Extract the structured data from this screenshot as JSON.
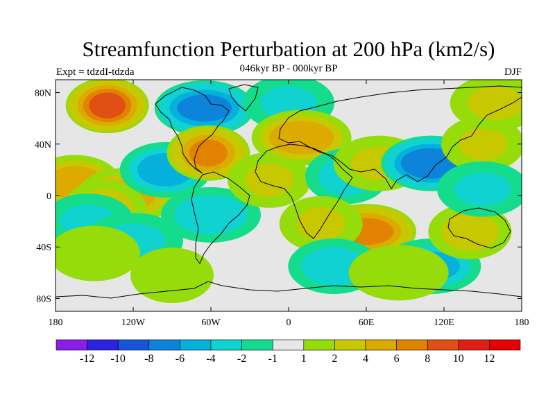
{
  "chart_data": {
    "type": "heatmap",
    "title": "Streamfunction Perturbation at 200 hPa (km2/s)",
    "subtitle_left": "Expt = tdzdI-tdzda",
    "subtitle_center": "046kyr BP - 000kyr BP",
    "subtitle_right": "DJF",
    "x_ticks": [
      "180",
      "120W",
      "60W",
      "0",
      "60E",
      "120E",
      "180"
    ],
    "y_ticks": [
      "80N",
      "40N",
      "0",
      "40S",
      "80S"
    ],
    "xlim": [
      -180,
      180
    ],
    "ylim": [
      -90,
      90
    ],
    "colorbar": {
      "labels": [
        "-12",
        "-10",
        "-8",
        "-6",
        "-4",
        "-2",
        "-1",
        "1",
        "2",
        "4",
        "6",
        "8",
        "10",
        "12"
      ],
      "colors": [
        "#8c1ce6",
        "#2b23e0",
        "#1656d6",
        "#0b84da",
        "#06b0dc",
        "#10d2d0",
        "#14dc8c",
        "#e6e6e6",
        "#96dc0a",
        "#c8c800",
        "#dcaa00",
        "#e18200",
        "#e05014",
        "#e01e14",
        "#e60000"
      ]
    },
    "field_blobs": [
      {
        "lon": -140,
        "lat": 70,
        "value": 9
      },
      {
        "lon": -165,
        "lat": 10,
        "value": 6
      },
      {
        "lon": -125,
        "lat": 0,
        "value": 5
      },
      {
        "lon": -142,
        "lat": -10,
        "value": 4
      },
      {
        "lon": -95,
        "lat": 20,
        "value": -6
      },
      {
        "lon": -65,
        "lat": 68,
        "value": -7
      },
      {
        "lon": -62,
        "lat": 33,
        "value": 7
      },
      {
        "lon": -155,
        "lat": -20,
        "value": -3
      },
      {
        "lon": -120,
        "lat": -35,
        "value": -3
      },
      {
        "lon": -90,
        "lat": -62,
        "value": 2
      },
      {
        "lon": -150,
        "lat": -45,
        "value": 2
      },
      {
        "lon": -60,
        "lat": -15,
        "value": -4
      },
      {
        "lon": -15,
        "lat": 12,
        "value": 3
      },
      {
        "lon": 0,
        "lat": 72,
        "value": -3
      },
      {
        "lon": 10,
        "lat": 45,
        "value": 6
      },
      {
        "lon": 45,
        "lat": 15,
        "value": -4
      },
      {
        "lon": 70,
        "lat": 25,
        "value": 3
      },
      {
        "lon": 110,
        "lat": 25,
        "value": -8
      },
      {
        "lon": 150,
        "lat": 40,
        "value": 3
      },
      {
        "lon": 160,
        "lat": 72,
        "value": 3
      },
      {
        "lon": 60,
        "lat": -28,
        "value": 7
      },
      {
        "lon": 25,
        "lat": -22,
        "value": 3
      },
      {
        "lon": 35,
        "lat": -55,
        "value": -4
      },
      {
        "lon": 110,
        "lat": -55,
        "value": -5
      },
      {
        "lon": 140,
        "lat": -28,
        "value": 4
      },
      {
        "lon": 150,
        "lat": 5,
        "value": -3
      },
      {
        "lon": 85,
        "lat": -60,
        "value": 2
      }
    ]
  }
}
